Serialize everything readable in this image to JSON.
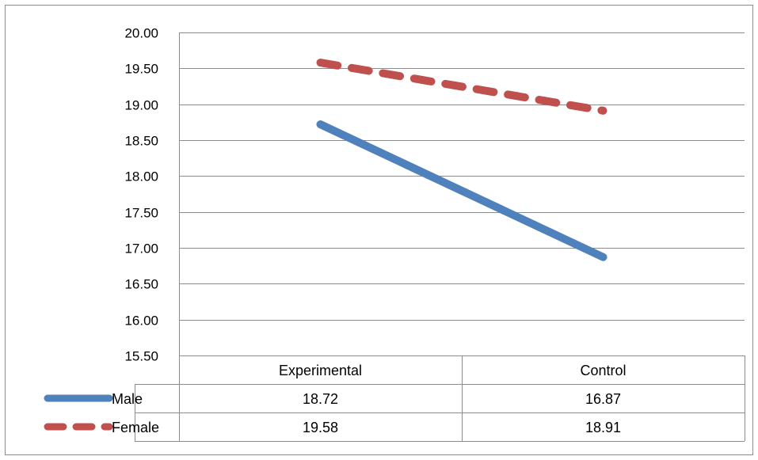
{
  "chart_data": {
    "type": "line",
    "categories": [
      "Experimental",
      "Control"
    ],
    "series": [
      {
        "name": "Male",
        "values": [
          18.72,
          16.87
        ],
        "color": "#4F81BD",
        "style": "solid"
      },
      {
        "name": "Female",
        "values": [
          19.58,
          18.91
        ],
        "color": "#C0504D",
        "style": "dashed"
      }
    ],
    "ylim": [
      15.5,
      20.0
    ],
    "yticks": [
      "20.00",
      "19.50",
      "19.00",
      "18.50",
      "18.00",
      "17.50",
      "17.00",
      "16.50",
      "16.00",
      "15.50"
    ],
    "grid": true,
    "legend": "data-table",
    "data_table": {
      "rows": [
        {
          "label": "Male",
          "cells": [
            "18.72",
            "16.87"
          ]
        },
        {
          "label": "Female",
          "cells": [
            "19.58",
            "18.91"
          ]
        }
      ]
    }
  }
}
